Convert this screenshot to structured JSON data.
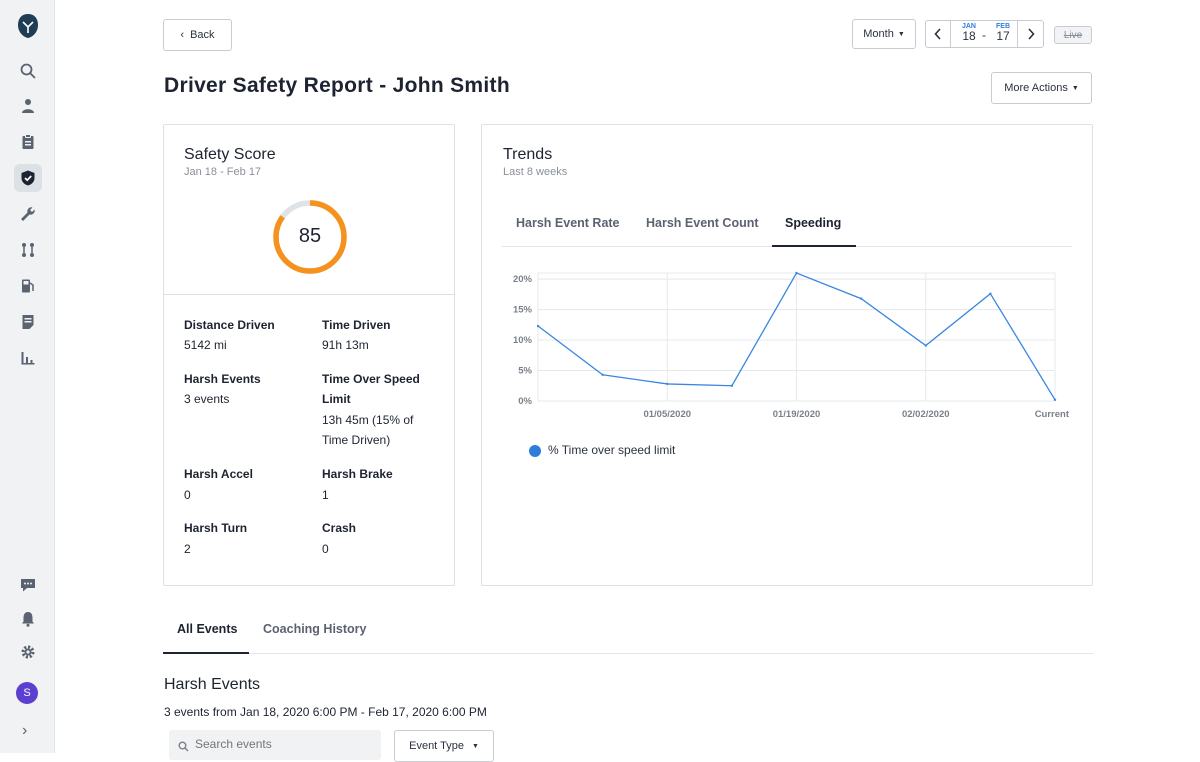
{
  "nav": {
    "items": [
      "search-icon",
      "driver-icon",
      "clipboard-icon",
      "shield-icon",
      "wrench-icon",
      "routes-icon",
      "fuel-icon",
      "document-icon",
      "chart-icon"
    ],
    "bottom": [
      "chat-icon",
      "bell-icon",
      "gear-icon"
    ],
    "avatar_initial": "S",
    "expand": "›"
  },
  "header": {
    "back_label": "Back",
    "period_label": "Month",
    "date_start_month": "JAN",
    "date_start_day": "18",
    "date_sep": "-",
    "date_end_month": "FEB",
    "date_end_day": "17",
    "live_label": "Live",
    "more_actions_label": "More Actions"
  },
  "page": {
    "title": "Driver Safety Report - John Smith"
  },
  "safety_score": {
    "title": "Safety Score",
    "range": "Jan 18 - Feb 17",
    "score": "85",
    "score_fraction": 0.85,
    "stats": {
      "distance_label": "Distance Driven",
      "distance_value": "5142 mi",
      "time_label": "Time Driven",
      "time_value": "91h 13m",
      "harsh_events_label": "Harsh Events",
      "harsh_events_value": "3 events",
      "over_speed_label": "Time Over Speed Limit",
      "over_speed_value": "13h 45m (15% of Time Driven)",
      "accel_label": "Harsh Accel",
      "accel_value": "0",
      "brake_label": "Harsh Brake",
      "brake_value": "1",
      "turn_label": "Harsh Turn",
      "turn_value": "2",
      "crash_label": "Crash",
      "crash_value": "0"
    }
  },
  "trends": {
    "title": "Trends",
    "subtitle": "Last 8 weeks",
    "tabs": [
      "Harsh Event Rate",
      "Harsh Event Count",
      "Speeding"
    ],
    "active_tab": "Speeding",
    "legend": "% Time over speed limit"
  },
  "chart_data": {
    "type": "line",
    "x_tick_labels": [
      "01/05/2020",
      "01/19/2020",
      "02/02/2020",
      "Current"
    ],
    "y_tick_labels": [
      "20%",
      "15%",
      "10%",
      "5%",
      "0%"
    ],
    "ylim": [
      0,
      21
    ],
    "series": [
      {
        "name": "% Time over speed limit",
        "color": "#3a86e0",
        "values": [
          12.3,
          4.3,
          2.8,
          2.5,
          21.0,
          16.8,
          9.1,
          17.6,
          0.2
        ]
      }
    ]
  },
  "events_section": {
    "tabs": [
      "All Events",
      "Coaching History"
    ],
    "active_tab": "All Events",
    "heading": "Harsh Events",
    "summary": "3 events from Jan 18, 2020 6:00 PM - Feb 17, 2020 6:00 PM",
    "search_placeholder": "Search events",
    "event_type_label": "Event Type"
  }
}
